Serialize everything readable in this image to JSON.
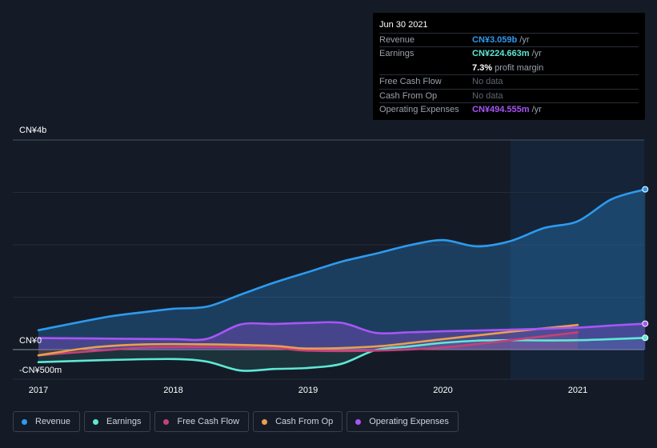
{
  "tooltip": {
    "date": "Jun 30 2021",
    "rows": [
      {
        "label": "Revenue",
        "value": "CN¥3.059b",
        "unit": "/yr",
        "color": "#2d9bf0"
      },
      {
        "label": "Earnings",
        "value": "CN¥224.663m",
        "unit": "/yr",
        "color": "#5ee8d5"
      },
      {
        "label": "",
        "value": "7.3%",
        "unit": "profit margin",
        "color": "#ffffff"
      },
      {
        "label": "Free Cash Flow",
        "value": "No data",
        "unit": "",
        "color": "#5f6670"
      },
      {
        "label": "Cash From Op",
        "value": "No data",
        "unit": "",
        "color": "#5f6670"
      },
      {
        "label": "Operating Expenses",
        "value": "CN¥494.555m",
        "unit": "/yr",
        "color": "#a855f7"
      }
    ]
  },
  "chart_data": {
    "type": "line",
    "y_axis_labels": {
      "top": "CN¥4b",
      "zero": "CN¥0",
      "bottom": "-CN¥500m"
    },
    "ylim": [
      -500,
      4000
    ],
    "x_ticks": [
      "2017",
      "2018",
      "2019",
      "2020",
      "2021"
    ],
    "x_tick_values": [
      2017.0,
      2018.0,
      2019.0,
      2020.0,
      2021.0
    ],
    "xlim": [
      2016.8,
      2021.5
    ],
    "gridlines": [
      0,
      1000,
      2000,
      3000,
      4000
    ],
    "past_data_shaded_from": 2020.5,
    "series": [
      {
        "name": "Revenue",
        "color": "#2d9bf0",
        "points": [
          [
            2017.0,
            370
          ],
          [
            2017.5,
            620
          ],
          [
            2017.8,
            720
          ],
          [
            2018.0,
            780
          ],
          [
            2018.25,
            820
          ],
          [
            2018.5,
            1050
          ],
          [
            2018.75,
            1280
          ],
          [
            2019.0,
            1480
          ],
          [
            2019.25,
            1680
          ],
          [
            2019.5,
            1830
          ],
          [
            2019.75,
            1990
          ],
          [
            2020.0,
            2090
          ],
          [
            2020.25,
            1970
          ],
          [
            2020.5,
            2070
          ],
          [
            2020.75,
            2320
          ],
          [
            2021.0,
            2450
          ],
          [
            2021.25,
            2870
          ],
          [
            2021.5,
            3059
          ]
        ]
      },
      {
        "name": "Earnings",
        "color": "#5ee8d5",
        "points": [
          [
            2017.0,
            -240
          ],
          [
            2017.5,
            -200
          ],
          [
            2018.0,
            -180
          ],
          [
            2018.25,
            -230
          ],
          [
            2018.5,
            -400
          ],
          [
            2018.75,
            -370
          ],
          [
            2019.0,
            -350
          ],
          [
            2019.25,
            -270
          ],
          [
            2019.5,
            -10
          ],
          [
            2019.75,
            60
          ],
          [
            2020.0,
            130
          ],
          [
            2020.25,
            170
          ],
          [
            2020.5,
            180
          ],
          [
            2020.75,
            175
          ],
          [
            2021.0,
            180
          ],
          [
            2021.25,
            200
          ],
          [
            2021.5,
            224.663
          ]
        ]
      },
      {
        "name": "Free Cash Flow",
        "color": "#c7407a",
        "points": [
          [
            2017.0,
            -110
          ],
          [
            2017.4,
            -30
          ],
          [
            2017.8,
            40
          ],
          [
            2018.25,
            50
          ],
          [
            2018.75,
            30
          ],
          [
            2019.0,
            -20
          ],
          [
            2019.5,
            -20
          ],
          [
            2020.0,
            40
          ],
          [
            2020.5,
            180
          ],
          [
            2021.0,
            330
          ]
        ]
      },
      {
        "name": "Cash From Op",
        "color": "#e9a04d",
        "points": [
          [
            2017.0,
            -110
          ],
          [
            2017.4,
            40
          ],
          [
            2017.8,
            100
          ],
          [
            2018.25,
            100
          ],
          [
            2018.75,
            70
          ],
          [
            2019.0,
            20
          ],
          [
            2019.5,
            60
          ],
          [
            2020.0,
            200
          ],
          [
            2020.5,
            340
          ],
          [
            2021.0,
            470
          ]
        ]
      },
      {
        "name": "Operating Expenses",
        "color": "#a855f7",
        "points": [
          [
            2017.0,
            220
          ],
          [
            2017.5,
            210
          ],
          [
            2018.0,
            200
          ],
          [
            2018.25,
            205
          ],
          [
            2018.5,
            480
          ],
          [
            2018.75,
            490
          ],
          [
            2019.0,
            510
          ],
          [
            2019.25,
            510
          ],
          [
            2019.5,
            320
          ],
          [
            2019.75,
            330
          ],
          [
            2020.0,
            350
          ],
          [
            2020.5,
            380
          ],
          [
            2021.0,
            420
          ],
          [
            2021.25,
            460
          ],
          [
            2021.5,
            494.555
          ]
        ]
      }
    ]
  },
  "legend": [
    {
      "label": "Revenue",
      "color": "#2d9bf0"
    },
    {
      "label": "Earnings",
      "color": "#5ee8d5"
    },
    {
      "label": "Free Cash Flow",
      "color": "#c7407a"
    },
    {
      "label": "Cash From Op",
      "color": "#e9a04d"
    },
    {
      "label": "Operating Expenses",
      "color": "#a855f7"
    }
  ]
}
